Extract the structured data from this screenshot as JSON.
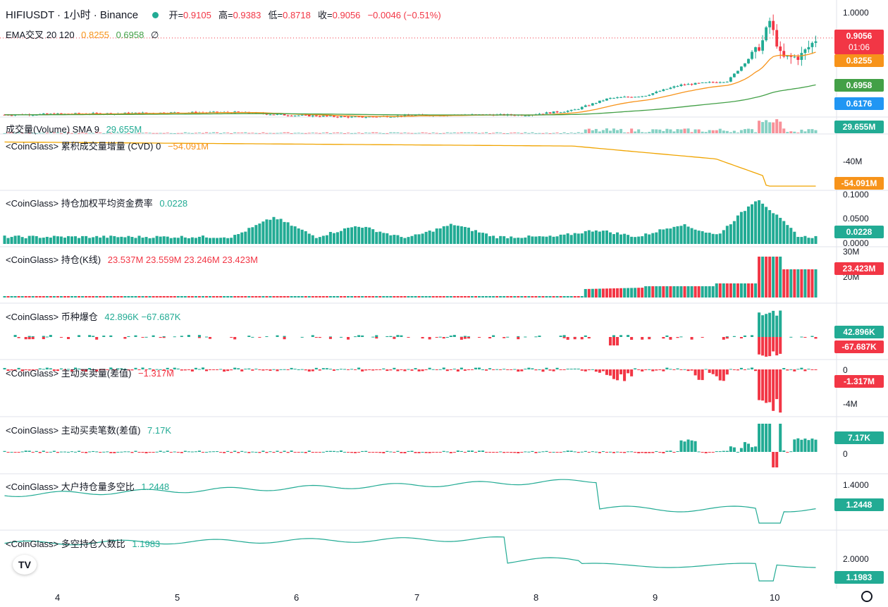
{
  "header": {
    "symbol": "HIFIUSDT · 1小时 · Binance",
    "open_label": "开=",
    "open": "0.9105",
    "high_label": "高=",
    "high": "0.9383",
    "low_label": "低=",
    "low": "0.8718",
    "close_label": "收=",
    "close": "0.9056",
    "change": "−0.0046 (−0.51%)"
  },
  "colors": {
    "up": "#22ab94",
    "down": "#f23645",
    "ema_fast": "#f7931a",
    "ema_slow": "#43a047",
    "cvd": "#f0a400"
  },
  "chart_data": [
    {
      "type": "candlestick",
      "title": "HIFIUSDT · 1小时 · Binance",
      "x_tick_labels": [
        "4",
        "5",
        "6",
        "7",
        "8",
        "9",
        "10"
      ],
      "y_tick_labels": [
        "1.0000"
      ],
      "ylim": [
        0.6,
        1.0
      ],
      "ohlc_current": {
        "open": 0.9105,
        "high": 0.9383,
        "low": 0.8718,
        "close": 0.9056
      },
      "close_path": [
        {
          "x": 3.6,
          "close": 0.619
        },
        {
          "x": 4.0,
          "close": 0.622
        },
        {
          "x": 4.5,
          "close": 0.624
        },
        {
          "x": 5.0,
          "close": 0.627
        },
        {
          "x": 5.5,
          "close": 0.628
        },
        {
          "x": 5.9,
          "close": 0.618
        },
        {
          "x": 6.5,
          "close": 0.61
        },
        {
          "x": 7.0,
          "close": 0.617
        },
        {
          "x": 7.5,
          "close": 0.619
        },
        {
          "x": 7.9,
          "close": 0.618
        },
        {
          "x": 8.3,
          "close": 0.635
        },
        {
          "x": 8.6,
          "close": 0.68
        },
        {
          "x": 8.9,
          "close": 0.69
        },
        {
          "x": 9.2,
          "close": 0.73
        },
        {
          "x": 9.6,
          "close": 0.745
        },
        {
          "x": 9.88,
          "close": 0.88
        },
        {
          "x": 9.95,
          "close": 0.97
        },
        {
          "x": 10.05,
          "close": 0.83
        },
        {
          "x": 10.2,
          "close": 0.835
        },
        {
          "x": 10.35,
          "close": 0.9056
        }
      ],
      "series": [
        {
          "name": "EMA交叉 20",
          "current": 0.8255
        },
        {
          "name": "EMA交叉 120",
          "current": 0.6958
        }
      ],
      "price_labels": [
        "0.9056",
        "01:06",
        "0.8255",
        "0.6958",
        "0.6176"
      ]
    },
    {
      "type": "bar",
      "title": "成交量(Volume) SMA 9",
      "value": "29.655M"
    },
    {
      "type": "line",
      "title": "<CoinGlass> 累积成交量增量 (CVD) 0",
      "value": "−54.091M",
      "y_tick_labels": [
        "-40M"
      ]
    },
    {
      "type": "bar",
      "title": "<CoinGlass> 持仓加权平均资金费率",
      "value": "0.0228",
      "y_tick_labels": [
        "0.1000",
        "0.0500",
        "0.0000"
      ],
      "ylim": [
        0,
        0.1
      ]
    },
    {
      "type": "candlestick",
      "title": "<CoinGlass> 持仓(K线)",
      "values": [
        "23.537M",
        "23.559M",
        "23.246M",
        "23.423M"
      ],
      "y_tick_labels": [
        "30M",
        "20M"
      ]
    },
    {
      "type": "bar",
      "title": "<CoinGlass> 币种爆仓",
      "values": [
        "42.896K",
        "−67.687K"
      ]
    },
    {
      "type": "bar",
      "title": "<CoinGlass> 主动买卖量(差值)",
      "value": "−1.317M",
      "y_tick_labels": [
        "0",
        "-4M"
      ]
    },
    {
      "type": "bar",
      "title": "<CoinGlass> 主动买卖笔数(差值)",
      "value": "7.17K",
      "y_tick_labels": [
        "0"
      ]
    },
    {
      "type": "line",
      "title": "<CoinGlass> 大户持仓量多空比",
      "value": "1.2448",
      "y_tick_labels": [
        "1.4000"
      ]
    },
    {
      "type": "line",
      "title": "<CoinGlass> 多空持仓人数比",
      "value": "1.1983",
      "y_tick_labels": [
        "2.0000"
      ]
    }
  ],
  "legends": {
    "ema": {
      "label": "EMA交叉 20 120",
      "v1": "0.8255",
      "v2": "0.6958",
      "v3": "∅"
    },
    "volume": {
      "label": "成交量(Volume) SMA 9",
      "value": "29.655M"
    },
    "cvd": {
      "label": "<CoinGlass> 累积成交量增量 (CVD) 0",
      "value": "−54.091M"
    },
    "funding": {
      "label": "<CoinGlass> 持仓加权平均资金费率",
      "value": "0.0228"
    },
    "oi": {
      "label": "<CoinGlass> 持仓(K线)",
      "value": "23.537M 23.559M 23.246M 23.423M"
    },
    "liq": {
      "label": "<CoinGlass> 币种爆仓",
      "value": "42.896K −67.687K"
    },
    "taker_vol": {
      "label": "<CoinGlass> 主动买卖量(差值)",
      "value": "−1.317M"
    },
    "taker_count": {
      "label": "<CoinGlass> 主动买卖笔数(差值)",
      "value": "7.17K"
    },
    "top_ratio": {
      "label": "<CoinGlass> 大户持仓量多空比",
      "value": "1.2448"
    },
    "ls_ratio": {
      "label": "<CoinGlass> 多空持仓人数比",
      "value": "1.1983"
    }
  },
  "axis_labels": {
    "price_top": "1.0000",
    "cvd_tick": "-40M",
    "fund_t1": "0.1000",
    "fund_t2": "0.0500",
    "fund_t3": "0.0000",
    "oi_t1": "30M",
    "oi_t2": "20M",
    "taker_t1": "0",
    "taker_t2": "-4M",
    "count_t1": "0",
    "top_t1": "1.4000",
    "ls_t1": "2.0000"
  },
  "axis_badges": {
    "close": "0.9056",
    "countdown": "01:06",
    "ema_fast": "0.8255",
    "ema_slow": "0.6958",
    "low": "0.6176",
    "volume": "29.655M",
    "cvd": "-54.091M",
    "funding": "0.0228",
    "oi": "23.423M",
    "liq_up": "42.896K",
    "liq_down": "-67.687K",
    "taker_vol": "-1.317M",
    "taker_count": "7.17K",
    "top_ratio": "1.2448",
    "ls_ratio": "1.1983"
  },
  "x_axis": [
    "4",
    "5",
    "6",
    "7",
    "8",
    "9",
    "10"
  ],
  "logo": "TV"
}
